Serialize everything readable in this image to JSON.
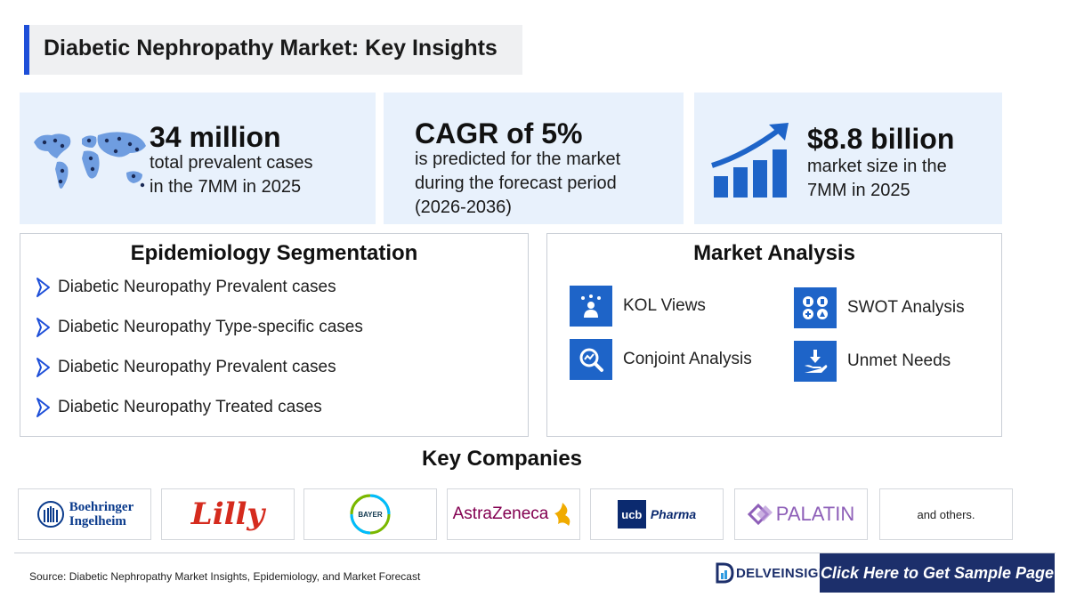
{
  "title": "Diabetic Nephropathy Market: Key Insights",
  "stats": [
    {
      "headline": "34 million",
      "line1": "total prevalent cases",
      "line2": "in the 7MM in 2025",
      "icon": "world-map-icon"
    },
    {
      "headline": "CAGR of 5%",
      "line1": "is predicted for the market",
      "line2": "during the forecast period",
      "line3": "(2026-2036)"
    },
    {
      "headline": "$8.8 billion",
      "line1": "market size in the",
      "line2": "7MM in 2025",
      "icon": "growth-chart-icon"
    }
  ],
  "epidemiology": {
    "heading": "Epidemiology Segmentation",
    "items": [
      "Diabetic Neuropathy Prevalent cases",
      "Diabetic Neuropathy Type-specific cases",
      "Diabetic Neuropathy Prevalent cases",
      "Diabetic Neuropathy Treated cases"
    ]
  },
  "market_analysis": {
    "heading": "Market Analysis",
    "items": [
      {
        "label": "KOL Views",
        "icon": "kol-icon"
      },
      {
        "label": "SWOT Analysis",
        "icon": "swot-icon"
      },
      {
        "label": "Conjoint Analysis",
        "icon": "conjoint-icon"
      },
      {
        "label": "Unmet Needs",
        "icon": "unmet-needs-icon"
      }
    ]
  },
  "key_companies": {
    "heading": "Key Companies",
    "logos": [
      "Boehringer",
      "Ingelheim",
      "Lilly",
      "BAYER",
      "AstraZeneca",
      "ucb",
      "Pharma",
      "PALATIN"
    ],
    "others": "and others."
  },
  "source": "Source: Diabetic Nephropathy Market Insights, Epidemiology, and Market Forecast",
  "brand": "DELVEINSIGHT",
  "cta": "Click Here to Get Sample Page",
  "colors": {
    "accent": "#1e64c8",
    "panel_bg": "#e8f1fc",
    "navy": "#1c2f6b"
  }
}
